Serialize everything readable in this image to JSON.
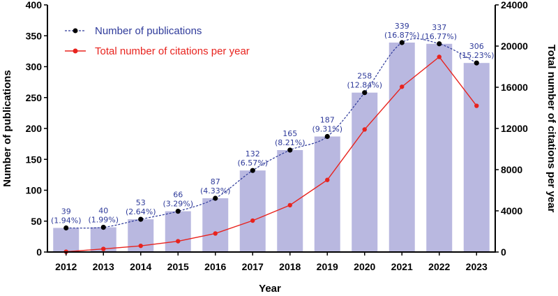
{
  "chart_data": {
    "type": "bar+line",
    "categories": [
      "2012",
      "2013",
      "2014",
      "2015",
      "2016",
      "2017",
      "2018",
      "2019",
      "2020",
      "2021",
      "2022",
      "2023"
    ],
    "xlabel": "Year",
    "ylabel_left": "Number of publications",
    "ylabel_right": "Total number of citations per year",
    "ylim_left": [
      0,
      400
    ],
    "ylim_right": [
      0,
      24000
    ],
    "yticks_left": [
      "0",
      "50",
      "100",
      "150",
      "200",
      "250",
      "300",
      "350",
      "400"
    ],
    "yticks_right": [
      "0",
      "4000",
      "8000",
      "12000",
      "16000",
      "20000",
      "24000"
    ],
    "series": [
      {
        "name": "Number of publications",
        "axis": "left",
        "render": "bar+dashed-line",
        "values": [
          39,
          40,
          53,
          66,
          87,
          132,
          165,
          187,
          258,
          339,
          337,
          306
        ],
        "labels": [
          "39",
          "40",
          "53",
          "66",
          "87",
          "132",
          "165",
          "187",
          "258",
          "339",
          "337",
          "306"
        ],
        "percents": [
          "(1.94%)",
          "(1.99%)",
          "(2.64%)",
          "(3.29%)",
          "(4.33%)",
          "(6.57%)",
          "(8.21%)",
          "(9.31%)",
          "(12.84%)",
          "(16.87%)",
          "(16.77%)",
          "(15.23%)"
        ]
      },
      {
        "name": "Total number of citations per year",
        "axis": "right",
        "render": "line",
        "values": [
          30,
          300,
          600,
          1050,
          1800,
          3050,
          4550,
          7000,
          11900,
          16050,
          18950,
          14200
        ]
      }
    ],
    "colors": {
      "bar": "#b9b8e0",
      "pub_line": "#2e3a9a",
      "pub_marker": "#000000",
      "cit_line": "#e8231e"
    }
  }
}
